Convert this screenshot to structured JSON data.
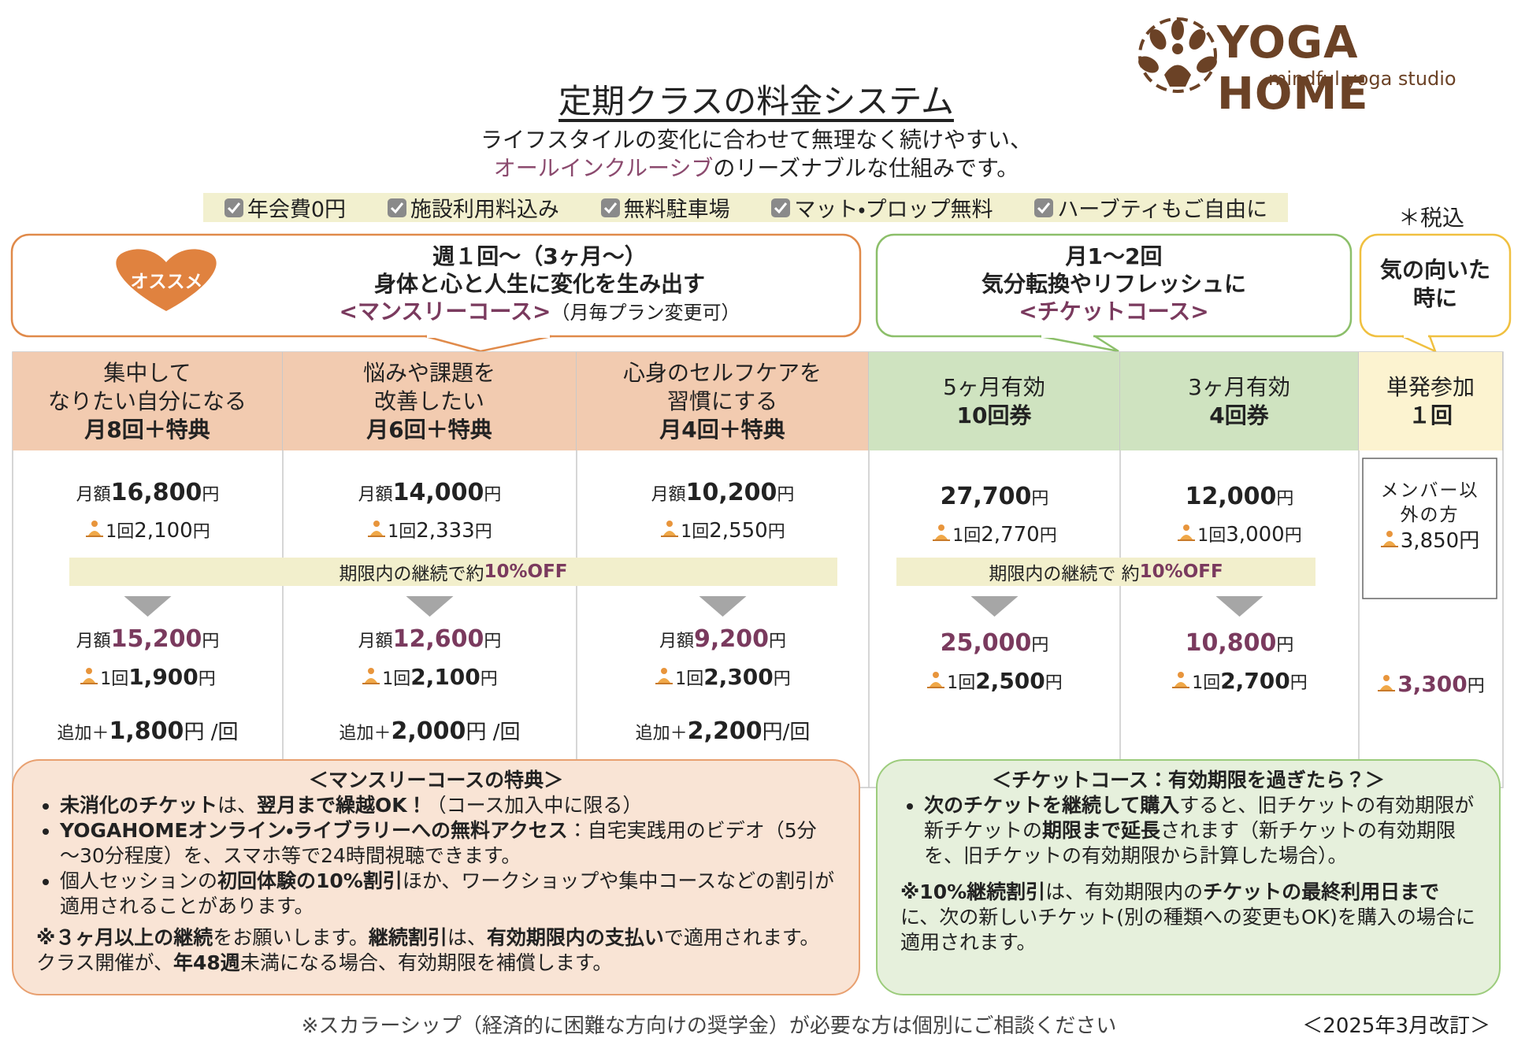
{
  "logo": {
    "name": "YOGA HOME",
    "tagline": "mindful yoga studio"
  },
  "header": {
    "title": "定期クラスの料金システム",
    "subtitle": {
      "line1": "ライフスタイルの変化に合わせて無理なく続けやすい、",
      "line2": [
        "オールインクルーシブ",
        "のリーズナブルな仕組みです。"
      ]
    }
  },
  "features": [
    "年会費0円",
    "施設利用料込み",
    "無料駐車場",
    "マット・プロップ無料",
    "ハーブティもご自由に"
  ],
  "tax_note": "＊税込",
  "courses": {
    "monthly": {
      "badge": "オススメ",
      "frequency": "週１回～（3ヶ月～）",
      "tagline": "身体と心と人生に変化を生み出す",
      "name": "<マンスリーコース>",
      "note": "（月毎プラン変更可）"
    },
    "ticket": {
      "frequency": "月1～2回",
      "tagline": "気分転換やリフレッシュに",
      "name": "<チケットコース>"
    },
    "single": {
      "tagline": "気の向いた時に"
    }
  },
  "table": {
    "columns": [
      {
        "header": [
          "集中して",
          "なりたい自分になる"
        ],
        "header_bold": "月8回＋特典",
        "price": {
          "label": "月額",
          "amount": "16,800",
          "unit": "円"
        },
        "per": {
          "label": "1回",
          "amount": "2,100",
          "unit": "円"
        },
        "discounted_price": {
          "label": "月額",
          "amount": "15,200",
          "unit": "円"
        },
        "discounted_per": {
          "label": "1回",
          "amount": "1,900",
          "unit": "円"
        },
        "extra": {
          "label": "追加＋",
          "amount": "1,800",
          "unit": "円 /回"
        }
      },
      {
        "header": [
          "悩みや課題を",
          "改善したい"
        ],
        "header_bold": "月6回＋特典",
        "price": {
          "label": "月額",
          "amount": "14,000",
          "unit": "円"
        },
        "per": {
          "label": "1回",
          "amount": "2,333",
          "unit": "円"
        },
        "discounted_price": {
          "label": "月額",
          "amount": "12,600",
          "unit": "円"
        },
        "discounted_per": {
          "label": "1回",
          "amount": "2,100",
          "unit": "円"
        },
        "extra": {
          "label": "追加＋",
          "amount": "2,000",
          "unit": "円 /回"
        }
      },
      {
        "header": [
          "心身のセルフケアを",
          "習慣にする"
        ],
        "header_bold": "月4回＋特典",
        "price": {
          "label": "月額",
          "amount": "10,200",
          "unit": "円"
        },
        "per": {
          "label": "1回",
          "amount": "2,550",
          "unit": "円"
        },
        "discounted_price": {
          "label": "月額",
          "amount": "9,200",
          "unit": "円"
        },
        "discounted_per": {
          "label": "1回",
          "amount": "2,300",
          "unit": "円"
        },
        "extra": {
          "label": "追加＋",
          "amount": "2,200",
          "unit": "円/回"
        }
      },
      {
        "header": [
          "5ヶ月有効"
        ],
        "header_bold": "10回券",
        "price": {
          "amount": "27,700",
          "unit": "円"
        },
        "per": {
          "label": "1回",
          "amount": "2,770",
          "unit": "円"
        },
        "discounted_price": {
          "amount": "25,000",
          "unit": "円"
        },
        "discounted_per": {
          "label": "1回",
          "amount": "2,500",
          "unit": "円"
        }
      },
      {
        "header": [
          "3ヶ月有効"
        ],
        "header_bold": "4回券",
        "price": {
          "amount": "12,000",
          "unit": "円"
        },
        "per": {
          "label": "1回",
          "amount": "3,000",
          "unit": "円"
        },
        "discounted_price": {
          "amount": "10,800",
          "unit": "円"
        },
        "discounted_per": {
          "label": "1回",
          "amount": "2,700",
          "unit": "円"
        }
      },
      {
        "header": [
          "単発参加"
        ],
        "header_bold": "１回",
        "nonmember": {
          "label": "メンバー以外の方",
          "amount": "3,850",
          "unit": "円"
        },
        "member": {
          "amount": "3,300",
          "unit": "円"
        }
      }
    ],
    "discounts": {
      "monthly": [
        "期限内の継続で約",
        "10%OFF"
      ],
      "ticket": [
        "期限内の継続で 約",
        "10%OFF"
      ]
    }
  },
  "benefits": {
    "monthly": {
      "title": "＜マンスリーコースの特典＞",
      "bullets": [
        [
          "未消化のチケット",
          "は、",
          "翌月まで繰越OK！",
          "（コース加入中に限る）"
        ],
        [
          "YOGAHOMEオンライン・ライブラリーへの無料アクセス",
          "：自宅実践用のビデオ（5分～30分程度）を、スマホ等で24時間視聴できます。"
        ],
        [
          "個人セッションの",
          "初回体験の10%割引",
          "ほか、ワークショップや集中コースなどの割引が適用されることがあります。"
        ]
      ],
      "note": [
        "※３ヶ月以上の継続",
        "をお願いします。",
        "継続割引",
        "は、",
        "有効期限内の支払い",
        "で適用されます。クラス開催が、",
        "年48週",
        "未満になる場合、有効期限を補償します。"
      ]
    },
    "ticket": {
      "title": "＜チケットコース：有効期限を過ぎたら？＞",
      "bullets": [
        [
          "次のチケットを継続して購入",
          "すると、旧チケットの有効期限が新チケットの",
          "期限まで延長",
          "されます（新チケットの有効期限を、旧チケットの有効期限から計算した場合）。"
        ]
      ],
      "note": [
        "※10%継続割引",
        "は、有効期限内の",
        "チケットの最終利用日まで",
        "に、次の新しいチケット(別の種類への変更もOK)を購入の場合に適用されます。"
      ]
    }
  },
  "footer": {
    "scholarship": "※スカラーシップ（経済的に困難な方向けの奨学金）が必要な方は個別にご相談ください",
    "revision": "＜2025年3月改訂＞"
  }
}
